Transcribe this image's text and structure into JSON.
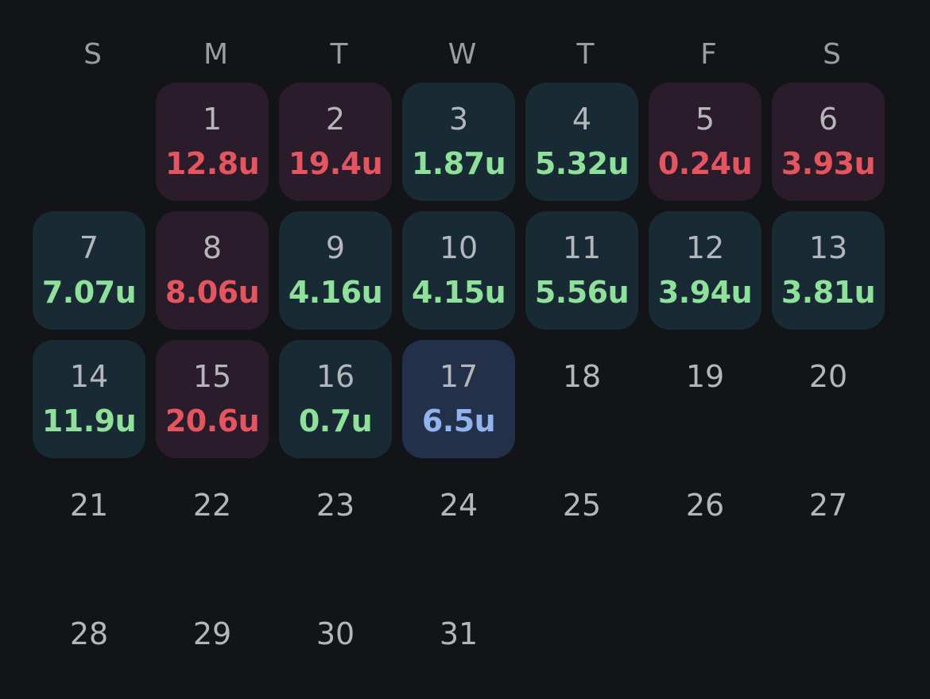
{
  "weekdays": [
    "S",
    "M",
    "T",
    "W",
    "T",
    "F",
    "S"
  ],
  "colors": {
    "background": "#121418",
    "loss_tile": "#2b1c2b",
    "win_tile": "#182a33",
    "today_tile": "#22304a",
    "loss_text": "#e4555f",
    "win_text": "#8ee09b",
    "today_text": "#92b4ee"
  },
  "leading_blank_days": 1,
  "days": [
    {
      "day": "1",
      "value": "12.8u",
      "status": "loss"
    },
    {
      "day": "2",
      "value": "19.4u",
      "status": "loss"
    },
    {
      "day": "3",
      "value": "1.87u",
      "status": "win"
    },
    {
      "day": "4",
      "value": "5.32u",
      "status": "win"
    },
    {
      "day": "5",
      "value": "0.24u",
      "status": "loss"
    },
    {
      "day": "6",
      "value": "3.93u",
      "status": "loss"
    },
    {
      "day": "7",
      "value": "7.07u",
      "status": "win"
    },
    {
      "day": "8",
      "value": "8.06u",
      "status": "loss"
    },
    {
      "day": "9",
      "value": "4.16u",
      "status": "win"
    },
    {
      "day": "10",
      "value": "4.15u",
      "status": "win"
    },
    {
      "day": "11",
      "value": "5.56u",
      "status": "win"
    },
    {
      "day": "12",
      "value": "3.94u",
      "status": "win"
    },
    {
      "day": "13",
      "value": "3.81u",
      "status": "win"
    },
    {
      "day": "14",
      "value": "11.9u",
      "status": "win"
    },
    {
      "day": "15",
      "value": "20.6u",
      "status": "loss"
    },
    {
      "day": "16",
      "value": "0.7u",
      "status": "win"
    },
    {
      "day": "17",
      "value": "6.5u",
      "status": "today"
    },
    {
      "day": "18",
      "value": "",
      "status": "empty"
    },
    {
      "day": "19",
      "value": "",
      "status": "empty"
    },
    {
      "day": "20",
      "value": "",
      "status": "empty"
    },
    {
      "day": "21",
      "value": "",
      "status": "empty"
    },
    {
      "day": "22",
      "value": "",
      "status": "empty"
    },
    {
      "day": "23",
      "value": "",
      "status": "empty"
    },
    {
      "day": "24",
      "value": "",
      "status": "empty"
    },
    {
      "day": "25",
      "value": "",
      "status": "empty"
    },
    {
      "day": "26",
      "value": "",
      "status": "empty"
    },
    {
      "day": "27",
      "value": "",
      "status": "empty"
    },
    {
      "day": "28",
      "value": "",
      "status": "empty"
    },
    {
      "day": "29",
      "value": "",
      "status": "empty"
    },
    {
      "day": "30",
      "value": "",
      "status": "empty"
    },
    {
      "day": "31",
      "value": "",
      "status": "empty"
    }
  ]
}
